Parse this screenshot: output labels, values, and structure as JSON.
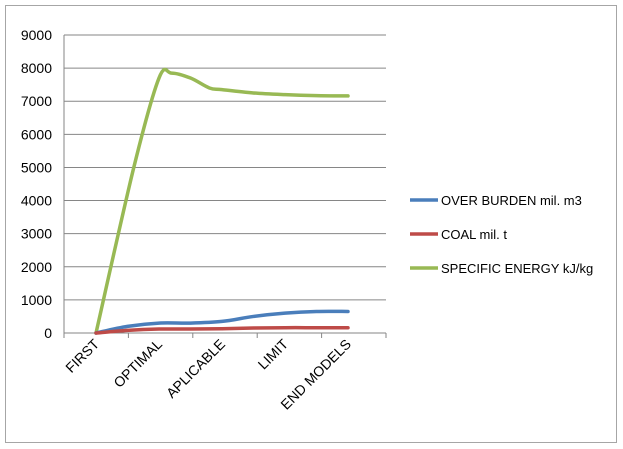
{
  "chart_data": {
    "type": "line",
    "title": "",
    "xlabel": "",
    "ylabel": "",
    "categories": [
      "FIRST",
      "OPTIMAL",
      "APLICABLE",
      "LIMIT",
      "END MODELS"
    ],
    "x_axis_tick_labels": [
      "FIRST",
      "OPTIMAL",
      "APLICABLE",
      "LIMIT",
      "END MODELS"
    ],
    "y_axis_tick_labels": [
      "0",
      "1000",
      "2000",
      "3000",
      "4000",
      "5000",
      "6000",
      "7000",
      "8000",
      "9000"
    ],
    "ylim": [
      0,
      9000
    ],
    "grid": "horizontal",
    "legend_position": "right",
    "series": [
      {
        "name": "OVER BURDEN mil. m3",
        "color": "#4a7ebb",
        "points": [
          {
            "x": 0,
            "y": 0
          },
          {
            "x": 0.5,
            "y": 200
          },
          {
            "x": 1,
            "y": 300
          },
          {
            "x": 1.5,
            "y": 300
          },
          {
            "x": 2,
            "y": 350
          },
          {
            "x": 2.5,
            "y": 500
          },
          {
            "x": 3,
            "y": 600
          },
          {
            "x": 3.5,
            "y": 650
          },
          {
            "x": 4,
            "y": 650
          }
        ]
      },
      {
        "name": "COAL mil. t",
        "color": "#be4b48",
        "points": [
          {
            "x": 0,
            "y": 0
          },
          {
            "x": 0.5,
            "y": 80
          },
          {
            "x": 1,
            "y": 120
          },
          {
            "x": 1.5,
            "y": 120
          },
          {
            "x": 2,
            "y": 130
          },
          {
            "x": 2.5,
            "y": 150
          },
          {
            "x": 3,
            "y": 160
          },
          {
            "x": 3.5,
            "y": 160
          },
          {
            "x": 4,
            "y": 160
          }
        ]
      },
      {
        "name": "SPECIFIC ENERGY kJ/kg",
        "color": "#98b954",
        "points": [
          {
            "x": 0,
            "y": 0
          },
          {
            "x": 0.6,
            "y": 5000
          },
          {
            "x": 1,
            "y": 7700
          },
          {
            "x": 1.2,
            "y": 7850
          },
          {
            "x": 1.5,
            "y": 7700
          },
          {
            "x": 1.8,
            "y": 7400
          },
          {
            "x": 2,
            "y": 7350
          },
          {
            "x": 2.5,
            "y": 7250
          },
          {
            "x": 3,
            "y": 7200
          },
          {
            "x": 3.5,
            "y": 7170
          },
          {
            "x": 4,
            "y": 7160
          }
        ]
      }
    ]
  }
}
